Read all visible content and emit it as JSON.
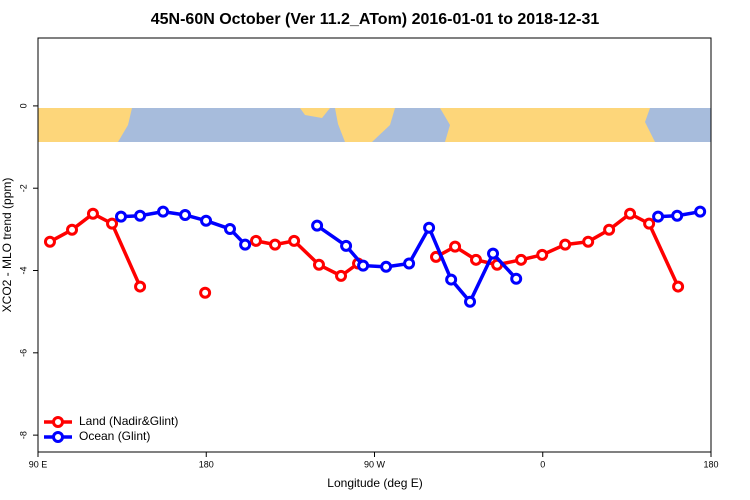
{
  "chart_data": {
    "type": "line",
    "title": "45N-60N October (Ver 11.2_ATom)   2016-01-01 to 2018-12-31",
    "xlabel": "Longitude (deg E)",
    "ylabel": "XCO2 - MLO trend (ppm)",
    "xlim": [
      90,
      450
    ],
    "ylim": [
      1.65,
      -8.41
    ],
    "xticks": [
      {
        "value": 90,
        "label": "90 E"
      },
      180,
      {
        "value": 270,
        "label": "90 W"
      },
      {
        "value": 360,
        "label": "0"
      },
      {
        "value": 450,
        "label": "180"
      }
    ],
    "yticks": [
      0,
      -2,
      -4,
      -6,
      -8
    ],
    "legend": "bottom-left",
    "series": [
      {
        "name": "Land (Nadir&Glint)",
        "color": "#ff0000",
        "x": [
          96.4,
          108.2,
          119.4,
          129.6,
          144.6,
          null,
          179.4,
          null,
          206.6,
          216.8,
          227.0,
          240.3,
          252.1,
          261.2,
          null,
          302.9,
          313.1,
          324.3,
          335.6,
          348.4,
          359.7,
          372.0,
          384.3,
          395.5,
          406.7,
          416.9,
          432.4
        ],
        "values": [
          -3.3,
          -3.01,
          -2.62,
          -2.86,
          -4.39,
          null,
          -4.54,
          null,
          -3.28,
          -3.37,
          -3.28,
          -3.86,
          -4.13,
          -3.83,
          null,
          -3.67,
          -3.42,
          -3.74,
          -3.86,
          -3.74,
          -3.62,
          -3.37,
          -3.3,
          -3.01,
          -2.62,
          -2.86,
          -4.39
        ]
      },
      {
        "name": "Ocean (Glint)",
        "color": "#0000ff",
        "x": [
          134.4,
          144.6,
          156.9,
          168.7,
          179.9,
          192.7,
          200.8,
          null,
          239.3,
          254.8,
          263.9,
          276.2,
          288.5,
          299.2,
          311.0,
          321.1,
          333.4,
          345.8,
          null,
          421.7,
          431.9,
          444.2
        ],
        "values": [
          -2.69,
          -2.67,
          -2.57,
          -2.65,
          -2.79,
          -2.99,
          -3.37,
          null,
          -2.91,
          -3.4,
          -3.88,
          -3.91,
          -3.83,
          -2.96,
          -4.22,
          -4.76,
          -3.59,
          -4.2,
          null,
          -2.69,
          -2.67,
          -2.57
        ]
      }
    ]
  }
}
